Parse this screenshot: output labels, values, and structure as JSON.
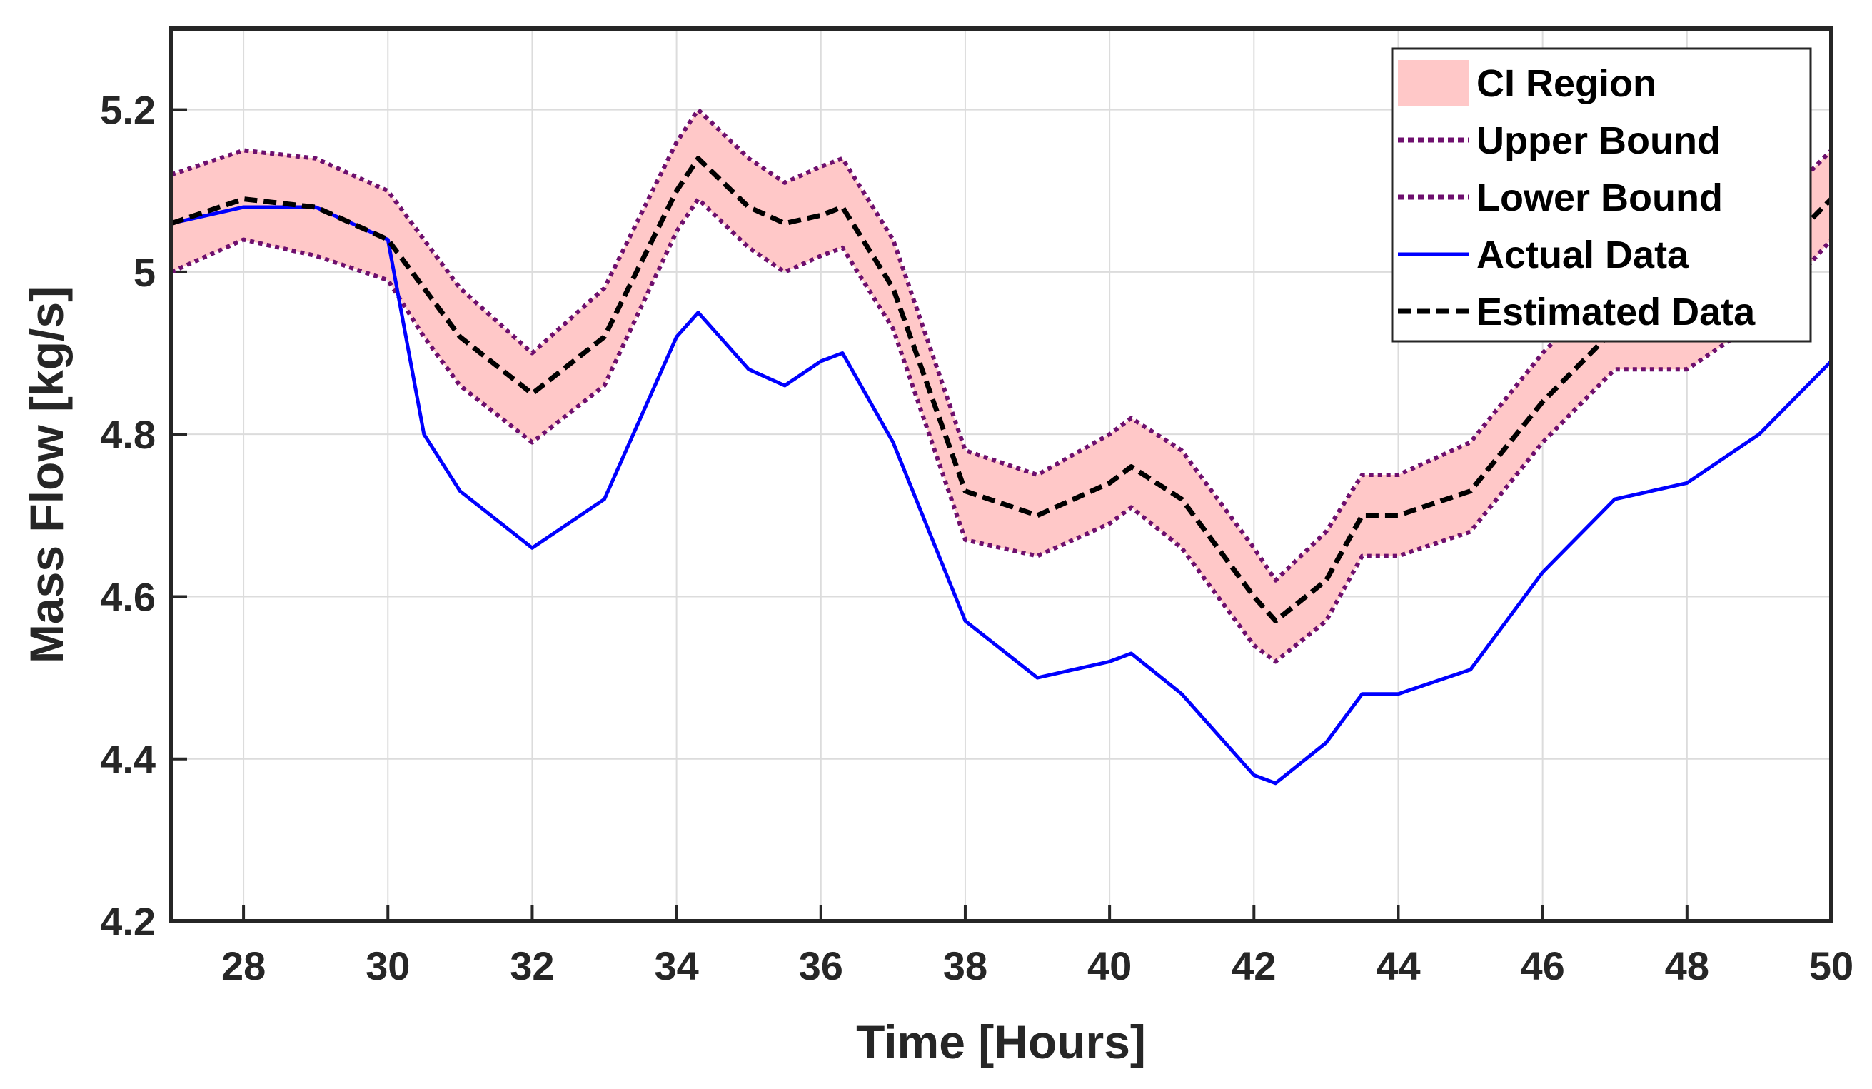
{
  "chart_data": {
    "type": "line",
    "xlabel": "Time [Hours]",
    "ylabel": "Mass Flow [kg/s]",
    "xlim": [
      27,
      50
    ],
    "ylim": [
      4.2,
      5.3
    ],
    "grid": true,
    "legend_position": "top-right",
    "x_ticks": [
      "28",
      "30",
      "32",
      "34",
      "36",
      "38",
      "40",
      "42",
      "44",
      "46",
      "48",
      "50"
    ],
    "y_ticks": [
      "4.2",
      "4.4",
      "4.6",
      "4.8",
      "5",
      "5.2"
    ],
    "legend": [
      {
        "label": "CI Region",
        "kind": "patch",
        "color": "#ffc8c8"
      },
      {
        "label": "Upper Bound",
        "kind": "dotted",
        "color": "#6e0f6e"
      },
      {
        "label": "Lower Bound",
        "kind": "dotted",
        "color": "#6e0f6e"
      },
      {
        "label": "Actual Data",
        "kind": "solid",
        "color": "#0000ff"
      },
      {
        "label": "Estimated Data",
        "kind": "dashed",
        "color": "#000000"
      }
    ],
    "x": [
      27,
      28,
      29,
      30,
      30.5,
      31,
      32,
      33,
      34,
      34.3,
      35,
      35.5,
      36,
      36.3,
      37,
      38,
      39,
      40,
      40.3,
      41,
      42,
      42.3,
      43,
      43.5,
      44,
      45,
      46,
      47,
      48,
      49,
      50
    ],
    "series": [
      {
        "name": "Estimated Data",
        "color": "#000000",
        "values": [
          5.06,
          5.09,
          5.08,
          5.04,
          4.98,
          4.92,
          4.85,
          4.92,
          5.1,
          5.14,
          5.08,
          5.06,
          5.07,
          5.08,
          4.98,
          4.73,
          4.7,
          4.74,
          4.76,
          4.72,
          4.6,
          4.57,
          4.62,
          4.7,
          4.7,
          4.73,
          4.84,
          4.93,
          4.95,
          5.0,
          5.09
        ]
      },
      {
        "name": "Upper Bound",
        "color": "#6e0f6e",
        "values": [
          5.12,
          5.15,
          5.14,
          5.1,
          5.04,
          4.98,
          4.9,
          4.98,
          5.16,
          5.2,
          5.14,
          5.11,
          5.13,
          5.14,
          5.04,
          4.78,
          4.75,
          4.8,
          4.82,
          4.78,
          4.66,
          4.62,
          4.68,
          4.75,
          4.75,
          4.79,
          4.9,
          4.99,
          5.01,
          5.06,
          5.15
        ]
      },
      {
        "name": "Lower Bound",
        "color": "#6e0f6e",
        "values": [
          5.0,
          5.04,
          5.02,
          4.99,
          4.92,
          4.86,
          4.79,
          4.86,
          5.05,
          5.09,
          5.03,
          5.0,
          5.02,
          5.03,
          4.93,
          4.67,
          4.65,
          4.69,
          4.71,
          4.66,
          4.54,
          4.52,
          4.57,
          4.65,
          4.65,
          4.68,
          4.79,
          4.88,
          4.88,
          4.94,
          5.04
        ]
      },
      {
        "name": "Actual Data",
        "color": "#0000ff",
        "values": [
          5.06,
          5.08,
          5.08,
          5.04,
          4.8,
          4.73,
          4.66,
          4.72,
          4.92,
          4.95,
          4.88,
          4.86,
          4.89,
          4.9,
          4.79,
          4.57,
          4.5,
          4.52,
          4.53,
          4.48,
          4.38,
          4.37,
          4.42,
          4.48,
          4.48,
          4.51,
          4.63,
          4.72,
          4.74,
          4.8,
          4.89
        ]
      }
    ]
  }
}
